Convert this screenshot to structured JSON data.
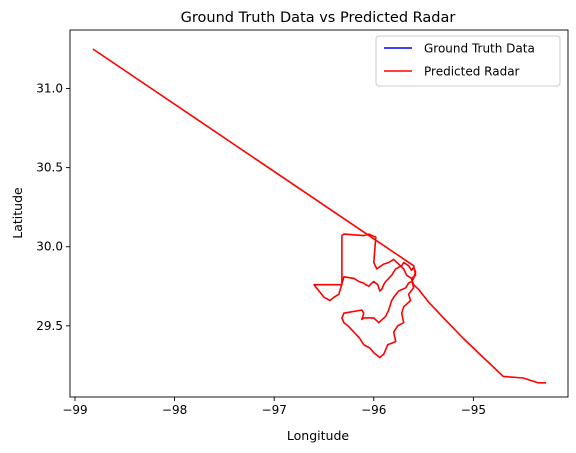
{
  "chart_data": {
    "type": "line",
    "title": "Ground Truth Data vs Predicted Radar",
    "xlabel": "Longitude",
    "ylabel": "Latitude",
    "xlim": [
      -99.05,
      -94.05
    ],
    "ylim": [
      29.05,
      31.37
    ],
    "xticks": [
      -99,
      -98,
      -97,
      -96,
      -95
    ],
    "xtick_labels": [
      "−99",
      "−98",
      "−97",
      "−96",
      "−95"
    ],
    "yticks": [
      29.5,
      30.0,
      30.5,
      31.0
    ],
    "ytick_labels": [
      "29.5",
      "30.0",
      "30.5",
      "31.0"
    ],
    "grid": false,
    "legend_position": "top-right",
    "series": [
      {
        "name": "Ground Truth Data",
        "color": "#0000ff",
        "x": [],
        "y": []
      },
      {
        "name": "Predicted Radar",
        "color": "#ff0000",
        "x": [
          -98.82,
          -95.6,
          -95.58,
          -95.62,
          -95.6,
          -95.65,
          -95.63,
          -95.7,
          -95.72,
          -95.7,
          -95.76,
          -95.8,
          -95.78,
          -95.86,
          -95.9,
          -95.94,
          -96.0,
          -96.04,
          -96.1,
          -96.14,
          -96.2,
          -96.26,
          -96.3,
          -96.32,
          -96.3,
          -96.12,
          -96.1,
          -96.12,
          -96.1,
          -96.0,
          -95.95,
          -95.88,
          -95.85,
          -95.82,
          -95.8,
          -95.75,
          -95.68,
          -95.65,
          -95.62,
          -95.6,
          -95.58,
          -95.6,
          -95.62,
          -95.65,
          -95.7,
          -95.72,
          -95.78,
          -95.8,
          -95.82,
          -95.85,
          -95.88,
          -95.9,
          -95.92,
          -95.94,
          -95.96,
          -96.0,
          -96.02,
          -96.05,
          -96.08,
          -96.1,
          -96.15,
          -96.2,
          -96.3,
          -96.35,
          -96.4,
          -96.44,
          -96.5,
          -96.55,
          -96.6,
          -96.32,
          -96.32,
          -96.3,
          -96.1,
          -96.05,
          -95.98,
          -96.0,
          -95.97,
          -95.9,
          -95.85,
          -95.8,
          -95.7,
          -95.67,
          -95.62,
          -95.6,
          -95.55,
          -95.45,
          -95.3,
          -95.1,
          -94.9,
          -94.7,
          -94.5,
          -94.35,
          -94.27
        ],
        "y": [
          31.25,
          29.88,
          29.82,
          29.8,
          29.74,
          29.7,
          29.66,
          29.62,
          29.58,
          29.52,
          29.5,
          29.46,
          29.4,
          29.38,
          29.32,
          29.3,
          29.33,
          29.36,
          29.38,
          29.42,
          29.46,
          29.5,
          29.52,
          29.55,
          29.58,
          29.6,
          29.58,
          29.54,
          29.55,
          29.55,
          29.52,
          29.56,
          29.6,
          29.66,
          29.68,
          29.72,
          29.74,
          29.77,
          29.78,
          29.8,
          29.84,
          29.87,
          29.85,
          29.88,
          29.9,
          29.88,
          29.86,
          29.84,
          29.82,
          29.8,
          29.78,
          29.76,
          29.73,
          29.72,
          29.76,
          29.78,
          29.77,
          29.75,
          29.76,
          29.77,
          29.78,
          29.8,
          29.81,
          29.7,
          29.68,
          29.66,
          29.68,
          29.72,
          29.76,
          29.76,
          30.07,
          30.08,
          30.07,
          30.08,
          30.06,
          29.9,
          29.86,
          29.89,
          29.9,
          29.92,
          29.86,
          29.82,
          29.8,
          29.76,
          29.73,
          29.65,
          29.55,
          29.42,
          29.3,
          29.18,
          29.17,
          29.14,
          29.14
        ]
      }
    ]
  }
}
